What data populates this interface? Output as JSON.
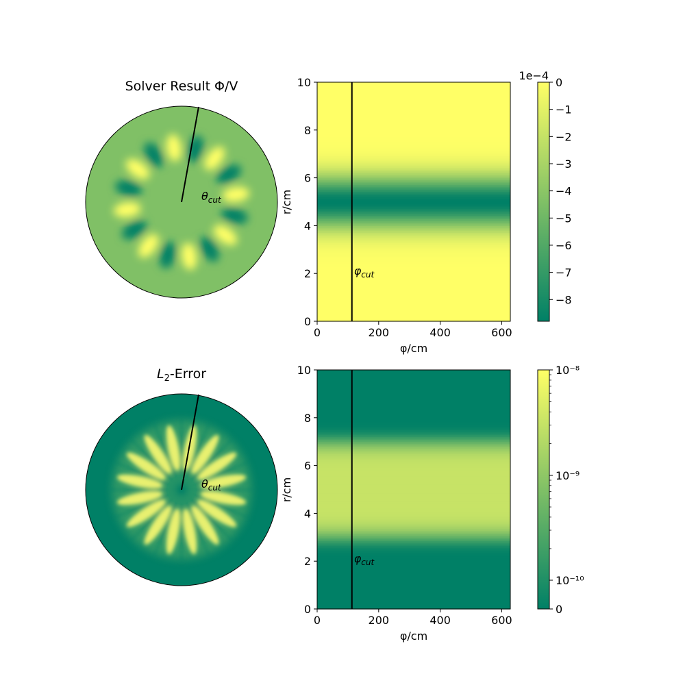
{
  "colors": {
    "low": "#008066",
    "mid": "#80c066",
    "high": "#ffff66"
  },
  "chart_data": [
    {
      "type": "heatmap",
      "panel": "polar",
      "title": "Solver Result Φ/V",
      "annotation": "θcut",
      "field": "potential",
      "lobes": 16,
      "background_level": 0.5,
      "cut_line_angle_deg": 78
    },
    {
      "type": "heatmap",
      "panel": "cartesian",
      "xlabel": "φ/cm",
      "ylabel": "r/cm",
      "xlim": [
        0,
        628
      ],
      "ylim": [
        0,
        10
      ],
      "xticks": [
        "0",
        "200",
        "400",
        "600"
      ],
      "yticks": [
        "0",
        "2",
        "4",
        "6",
        "8",
        "10"
      ],
      "annotation": "φcut",
      "annotation_y": 2,
      "cut_x": 113,
      "profile": {
        "center": 5.0,
        "width": 1.1,
        "shape": "gaussian"
      },
      "colorbar": {
        "scale": "linear",
        "multiplier": "1e−4",
        "min": -8.8,
        "max": 0,
        "ticks": [
          "0",
          "−1",
          "−2",
          "−3",
          "−4",
          "−5",
          "−6",
          "−7",
          "−8"
        ]
      }
    },
    {
      "type": "heatmap",
      "panel": "polar",
      "title": "L2-Error",
      "annotation": "θcut",
      "field": "error",
      "lobes": 16,
      "background_level": 0.0,
      "cut_line_angle_deg": 78
    },
    {
      "type": "heatmap",
      "panel": "cartesian",
      "xlabel": "φ/cm",
      "ylabel": "r/cm",
      "xlim": [
        0,
        628
      ],
      "ylim": [
        0,
        10
      ],
      "xticks": [
        "0",
        "200",
        "400",
        "600"
      ],
      "yticks": [
        "0",
        "2",
        "4",
        "6",
        "8",
        "10"
      ],
      "annotation": "φcut",
      "annotation_y": 2,
      "cut_x": 113,
      "profile": {
        "center": 5.0,
        "width": 2.1,
        "shape": "flat-top"
      },
      "colorbar": {
        "scale": "log",
        "ticks": [
          "10⁻⁸",
          "10⁻⁹",
          "10⁻¹⁰",
          "0"
        ]
      }
    }
  ]
}
